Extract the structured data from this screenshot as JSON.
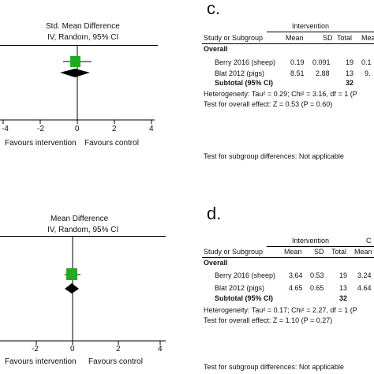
{
  "colors": {
    "study_square": "#22aa22",
    "diamond": "#000000",
    "text": "#111111"
  },
  "top_plot": {
    "header_line1": "Std. Mean Difference",
    "header_line2": "IV, Random, 95% CI",
    "ticks": [
      "-4",
      "-2",
      "0",
      "2",
      "4"
    ],
    "favours_left": "Favours intervention",
    "favours_right": "Favours control"
  },
  "bottom_plot": {
    "header_line1": "Mean Difference",
    "header_line2": "IV, Random, 95% CI",
    "ticks": [
      "-2",
      "0",
      "2",
      "4"
    ],
    "favours_left": "Favours intervention",
    "favours_right": "Favours control"
  },
  "panel_c": {
    "letter": "c.",
    "group_header": "Intervention",
    "columns": [
      "Study or Subgroup",
      "Mean",
      "SD",
      "Total",
      "Mea"
    ],
    "overall_label": "Overall",
    "rows": [
      {
        "study": "Berry 2016 (sheep)",
        "mean": "0.19",
        "sd": "0.091",
        "total": "19",
        "extra": "0.1"
      },
      {
        "study": "Blat 2012 (pigs)",
        "mean": "8.51",
        "sd": "2.88",
        "total": "13",
        "extra": "9."
      }
    ],
    "subtotal_label": "Subtotal (95% CI)",
    "subtotal_total": "32",
    "heterogeneity": "Heterogeneity: Tau² = 0.29; Chi² = 3.16, df = 1 (P",
    "overall_effect": "Test for overall effect: Z = 0.53 (P = 0.60)",
    "subgroup_test": "Test for subgroup differences: Not applicable"
  },
  "panel_d": {
    "letter": "d.",
    "group_header": "Intervention",
    "group_header2": "C",
    "columns": [
      "Study or Subgroup",
      "Mean",
      "SD",
      "Total",
      "Mean"
    ],
    "overall_label": "Overall",
    "rows": [
      {
        "study": "Berry 2016 (sheep)",
        "mean": "3.64",
        "sd": "0.53",
        "total": "19",
        "extra": "3.24"
      },
      {
        "study": "Blat 2012 (pigs)",
        "mean": "4.65",
        "sd": "0.65",
        "total": "13",
        "extra": "4.64"
      }
    ],
    "subtotal_label": "Subtotal (95% CI)",
    "subtotal_total": "32",
    "heterogeneity": "Heterogeneity: Tau² = 0.17; Chi² = 2.27, df = 1 (P",
    "overall_effect": "Test for overall effect: Z = 1.10 (P = 0.27)",
    "subgroup_test": "Test for subgroup differences: Not applicable"
  }
}
